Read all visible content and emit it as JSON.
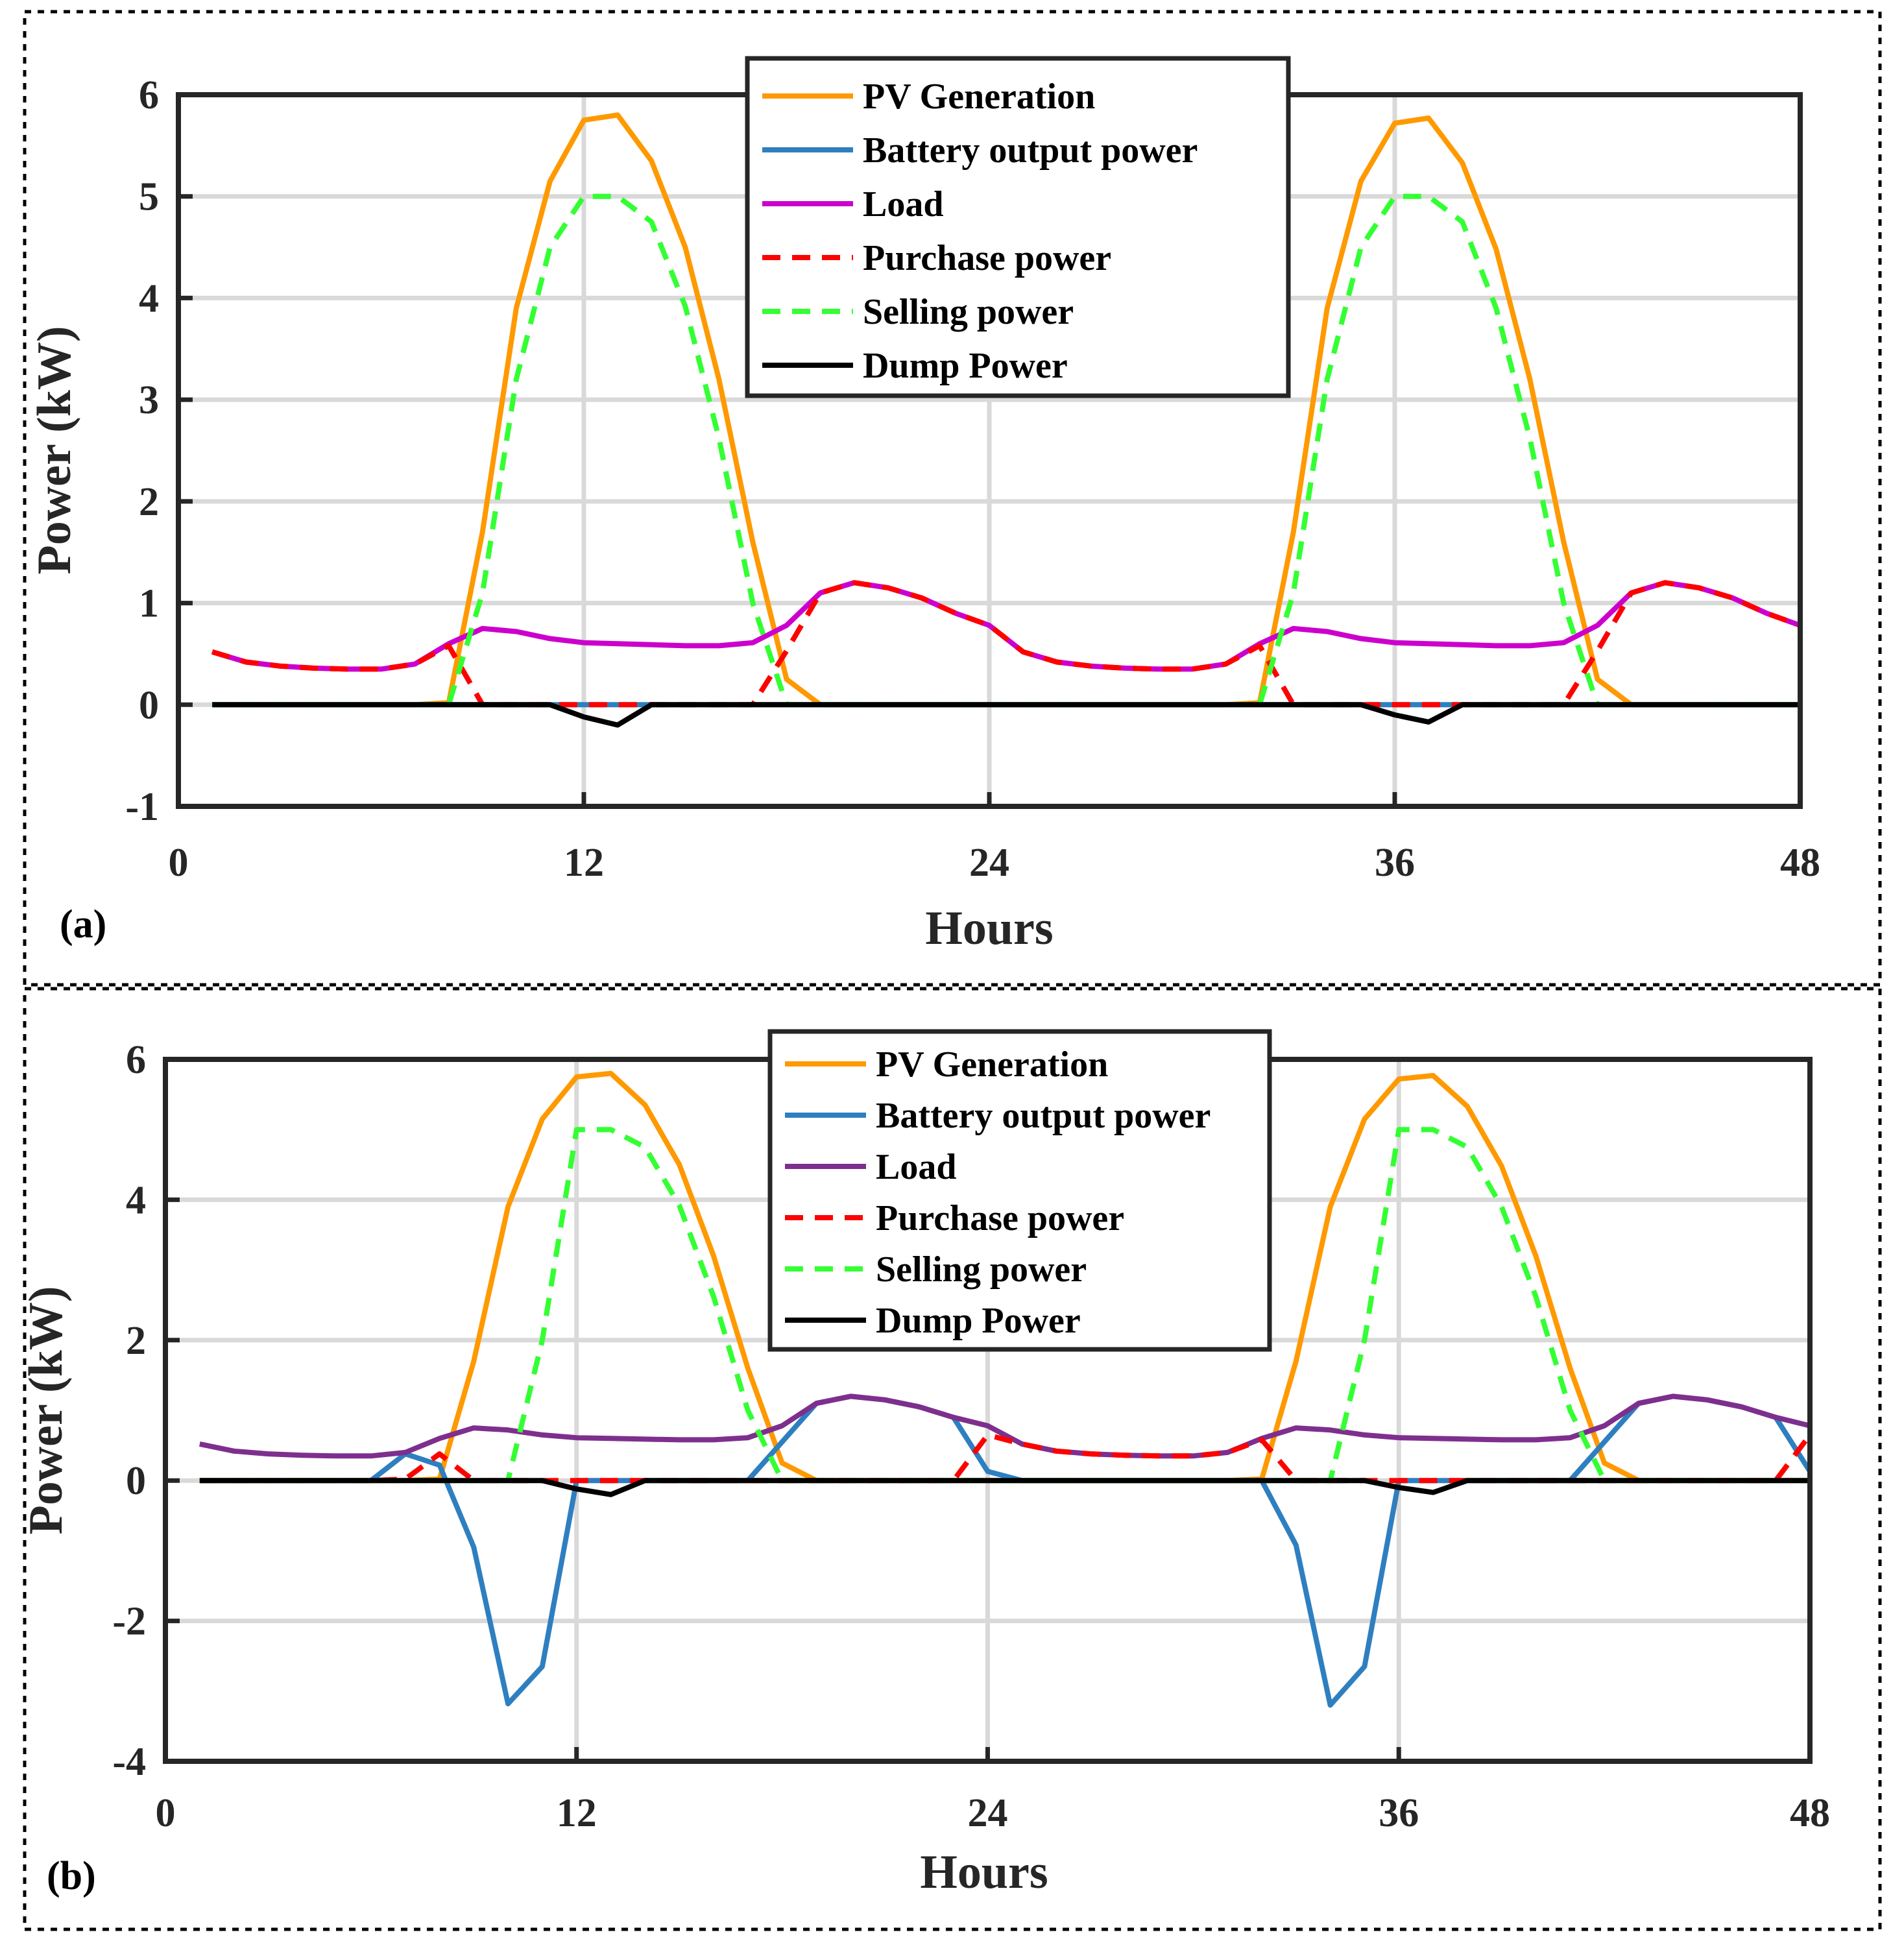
{
  "chart_data": [
    {
      "type": "line",
      "panel_label": "(a)",
      "xlabel": "Hours",
      "ylabel": "Power (kW)",
      "xlim": [
        0,
        48
      ],
      "ylim": [
        -1,
        6
      ],
      "xticks": [
        0,
        12,
        24,
        36,
        48
      ],
      "yticks": [
        -1,
        0,
        1,
        2,
        3,
        4,
        5,
        6
      ],
      "legend_position": "top-center",
      "x": [
        1,
        2,
        3,
        4,
        5,
        6,
        7,
        8,
        9,
        10,
        11,
        12,
        13,
        14,
        15,
        16,
        17,
        18,
        19,
        20,
        21,
        22,
        23,
        24,
        25,
        26,
        27,
        28,
        29,
        30,
        31,
        32,
        33,
        34,
        35,
        36,
        37,
        38,
        39,
        40,
        41,
        42,
        43,
        44,
        45,
        46,
        47,
        48
      ],
      "series": [
        {
          "name": "PV Generation",
          "color": "#ff9900",
          "dash": "solid",
          "values": [
            0,
            0,
            0,
            0,
            0,
            0,
            0,
            0.02,
            1.7,
            3.9,
            5.15,
            5.75,
            5.8,
            5.35,
            4.5,
            3.2,
            1.6,
            0.25,
            0,
            0,
            0,
            0,
            0,
            0,
            0,
            0,
            0,
            0,
            0,
            0,
            0,
            0.02,
            1.7,
            3.9,
            5.15,
            5.72,
            5.77,
            5.33,
            4.48,
            3.2,
            1.6,
            0.25,
            0,
            0,
            0,
            0,
            0,
            0
          ]
        },
        {
          "name": "Battery output power",
          "color": "#2e7fc0",
          "dash": "solid",
          "values": [
            0,
            0,
            0,
            0,
            0,
            0,
            0,
            0,
            0,
            0,
            0,
            0,
            0,
            0,
            0,
            0,
            0,
            0,
            0,
            0,
            0,
            0,
            0,
            0,
            0,
            0,
            0,
            0,
            0,
            0,
            0,
            0,
            0,
            0,
            0,
            0,
            0,
            0,
            0,
            0,
            0,
            0,
            0,
            0,
            0,
            0,
            0,
            0
          ]
        },
        {
          "name": "Load",
          "color": "#cc00cc",
          "dash": "solid",
          "values": [
            0.52,
            0.42,
            0.38,
            0.36,
            0.35,
            0.35,
            0.4,
            0.6,
            0.75,
            0.72,
            0.65,
            0.61,
            0.6,
            0.59,
            0.58,
            0.58,
            0.61,
            0.78,
            1.1,
            1.2,
            1.15,
            1.05,
            0.9,
            0.78,
            0.52,
            0.42,
            0.38,
            0.36,
            0.35,
            0.35,
            0.4,
            0.6,
            0.75,
            0.72,
            0.65,
            0.61,
            0.6,
            0.59,
            0.58,
            0.58,
            0.61,
            0.78,
            1.1,
            1.2,
            1.15,
            1.05,
            0.9,
            0.78
          ]
        },
        {
          "name": "Purchase power",
          "color": "#ff0000",
          "dash": "dashed",
          "values": [
            0.52,
            0.42,
            0.38,
            0.36,
            0.35,
            0.35,
            0.4,
            0.58,
            0,
            0,
            0,
            0,
            0,
            0,
            0,
            0,
            0,
            0.53,
            1.1,
            1.2,
            1.15,
            1.05,
            0.9,
            0.78,
            0.52,
            0.42,
            0.38,
            0.36,
            0.35,
            0.35,
            0.4,
            0.58,
            0,
            0,
            0,
            0,
            0,
            0,
            0,
            0,
            0,
            0.53,
            1.1,
            1.2,
            1.15,
            1.05,
            0.9,
            0.78
          ]
        },
        {
          "name": "Selling power",
          "color": "#33ff33",
          "dash": "dashed",
          "values": [
            0,
            0,
            0,
            0,
            0,
            0,
            0,
            0,
            1.1,
            3.2,
            4.5,
            5.0,
            5.0,
            4.75,
            3.92,
            2.62,
            1.0,
            0,
            0,
            0,
            0,
            0,
            0,
            0,
            0,
            0,
            0,
            0,
            0,
            0,
            0,
            0,
            1.1,
            3.2,
            4.5,
            5.0,
            5.0,
            4.75,
            3.9,
            2.62,
            1.0,
            0,
            0,
            0,
            0,
            0,
            0,
            0
          ]
        },
        {
          "name": "Dump Power",
          "color": "#000000",
          "dash": "solid",
          "values": [
            0,
            0,
            0,
            0,
            0,
            0,
            0,
            0,
            0,
            0,
            0,
            -0.12,
            -0.2,
            0,
            0,
            0,
            0,
            0,
            0,
            0,
            0,
            0,
            0,
            0,
            0,
            0,
            0,
            0,
            0,
            0,
            0,
            0,
            0,
            0,
            0,
            -0.1,
            -0.17,
            0,
            0,
            0,
            0,
            0,
            0,
            0,
            0,
            0,
            0,
            0
          ]
        }
      ]
    },
    {
      "type": "line",
      "panel_label": "(b)",
      "xlabel": "Hours",
      "ylabel": "Power (kW)",
      "xlim": [
        0,
        48
      ],
      "ylim": [
        -4,
        6
      ],
      "xticks": [
        0,
        12,
        24,
        36,
        48
      ],
      "yticks": [
        -4,
        -2,
        0,
        2,
        4,
        6
      ],
      "legend_position": "top-center",
      "x": [
        1,
        2,
        3,
        4,
        5,
        6,
        7,
        8,
        9,
        10,
        11,
        12,
        13,
        14,
        15,
        16,
        17,
        18,
        19,
        20,
        21,
        22,
        23,
        24,
        25,
        26,
        27,
        28,
        29,
        30,
        31,
        32,
        33,
        34,
        35,
        36,
        37,
        38,
        39,
        40,
        41,
        42,
        43,
        44,
        45,
        46,
        47,
        48
      ],
      "series": [
        {
          "name": "PV Generation",
          "color": "#ff9900",
          "dash": "solid",
          "values": [
            0,
            0,
            0,
            0,
            0,
            0,
            0,
            0.02,
            1.7,
            3.9,
            5.15,
            5.75,
            5.8,
            5.35,
            4.5,
            3.2,
            1.6,
            0.25,
            0,
            0,
            0,
            0,
            0,
            0,
            0,
            0,
            0,
            0,
            0,
            0,
            0,
            0.02,
            1.7,
            3.9,
            5.15,
            5.72,
            5.77,
            5.33,
            4.48,
            3.2,
            1.6,
            0.25,
            0,
            0,
            0,
            0,
            0,
            0
          ]
        },
        {
          "name": "Battery output power",
          "color": "#2e7fc0",
          "dash": "solid",
          "values": [
            0,
            0,
            0,
            0,
            0,
            0,
            0.38,
            0.22,
            -0.95,
            -3.18,
            -2.65,
            0,
            0,
            0,
            0,
            0,
            0,
            0.55,
            1.1,
            1.2,
            1.15,
            1.05,
            0.9,
            0.13,
            0,
            0,
            0,
            0,
            0,
            0,
            0,
            0,
            -0.92,
            -3.2,
            -2.65,
            0,
            0,
            0,
            0,
            0,
            0,
            0.55,
            1.1,
            1.2,
            1.15,
            1.05,
            0.9,
            0.13
          ]
        },
        {
          "name": "Load",
          "color": "#7e2f8e",
          "dash": "solid",
          "values": [
            0.52,
            0.42,
            0.38,
            0.36,
            0.35,
            0.35,
            0.4,
            0.6,
            0.75,
            0.72,
            0.65,
            0.61,
            0.6,
            0.59,
            0.58,
            0.58,
            0.61,
            0.78,
            1.1,
            1.2,
            1.15,
            1.05,
            0.9,
            0.78,
            0.52,
            0.42,
            0.38,
            0.36,
            0.35,
            0.35,
            0.4,
            0.6,
            0.75,
            0.72,
            0.65,
            0.61,
            0.6,
            0.59,
            0.58,
            0.58,
            0.61,
            0.78,
            1.1,
            1.2,
            1.15,
            1.05,
            0.9,
            0.78
          ]
        },
        {
          "name": "Purchase power",
          "color": "#ff0000",
          "dash": "dashed",
          "values": [
            0,
            0,
            0,
            0,
            0,
            0,
            0.02,
            0.38,
            0,
            0,
            0,
            0,
            0,
            0,
            0,
            0,
            0,
            0,
            0,
            0,
            0,
            0,
            0,
            0.65,
            0.52,
            0.42,
            0.38,
            0.36,
            0.35,
            0.35,
            0.4,
            0.58,
            0,
            0,
            0,
            0,
            0,
            0,
            0,
            0,
            0,
            0,
            0,
            0,
            0,
            0,
            0,
            0.65
          ]
        },
        {
          "name": "Selling power",
          "color": "#33ff33",
          "dash": "dashed",
          "values": [
            0,
            0,
            0,
            0,
            0,
            0,
            0,
            0,
            0,
            0,
            2.0,
            5.0,
            5.0,
            4.75,
            3.92,
            2.62,
            1.0,
            0,
            0,
            0,
            0,
            0,
            0,
            0,
            0,
            0,
            0,
            0,
            0,
            0,
            0,
            0,
            0,
            0,
            2.0,
            5.0,
            5.0,
            4.75,
            3.9,
            2.62,
            1.0,
            0,
            0,
            0,
            0,
            0,
            0,
            0
          ]
        },
        {
          "name": "Dump Power",
          "color": "#000000",
          "dash": "solid",
          "values": [
            0,
            0,
            0,
            0,
            0,
            0,
            0,
            0,
            0,
            0,
            0,
            -0.12,
            -0.2,
            0,
            0,
            0,
            0,
            0,
            0,
            0,
            0,
            0,
            0,
            0,
            0,
            0,
            0,
            0,
            0,
            0,
            0,
            0,
            0,
            0,
            0,
            -0.1,
            -0.17,
            0,
            0,
            0,
            0,
            0,
            0,
            0,
            0,
            0,
            0,
            0
          ]
        }
      ]
    }
  ]
}
